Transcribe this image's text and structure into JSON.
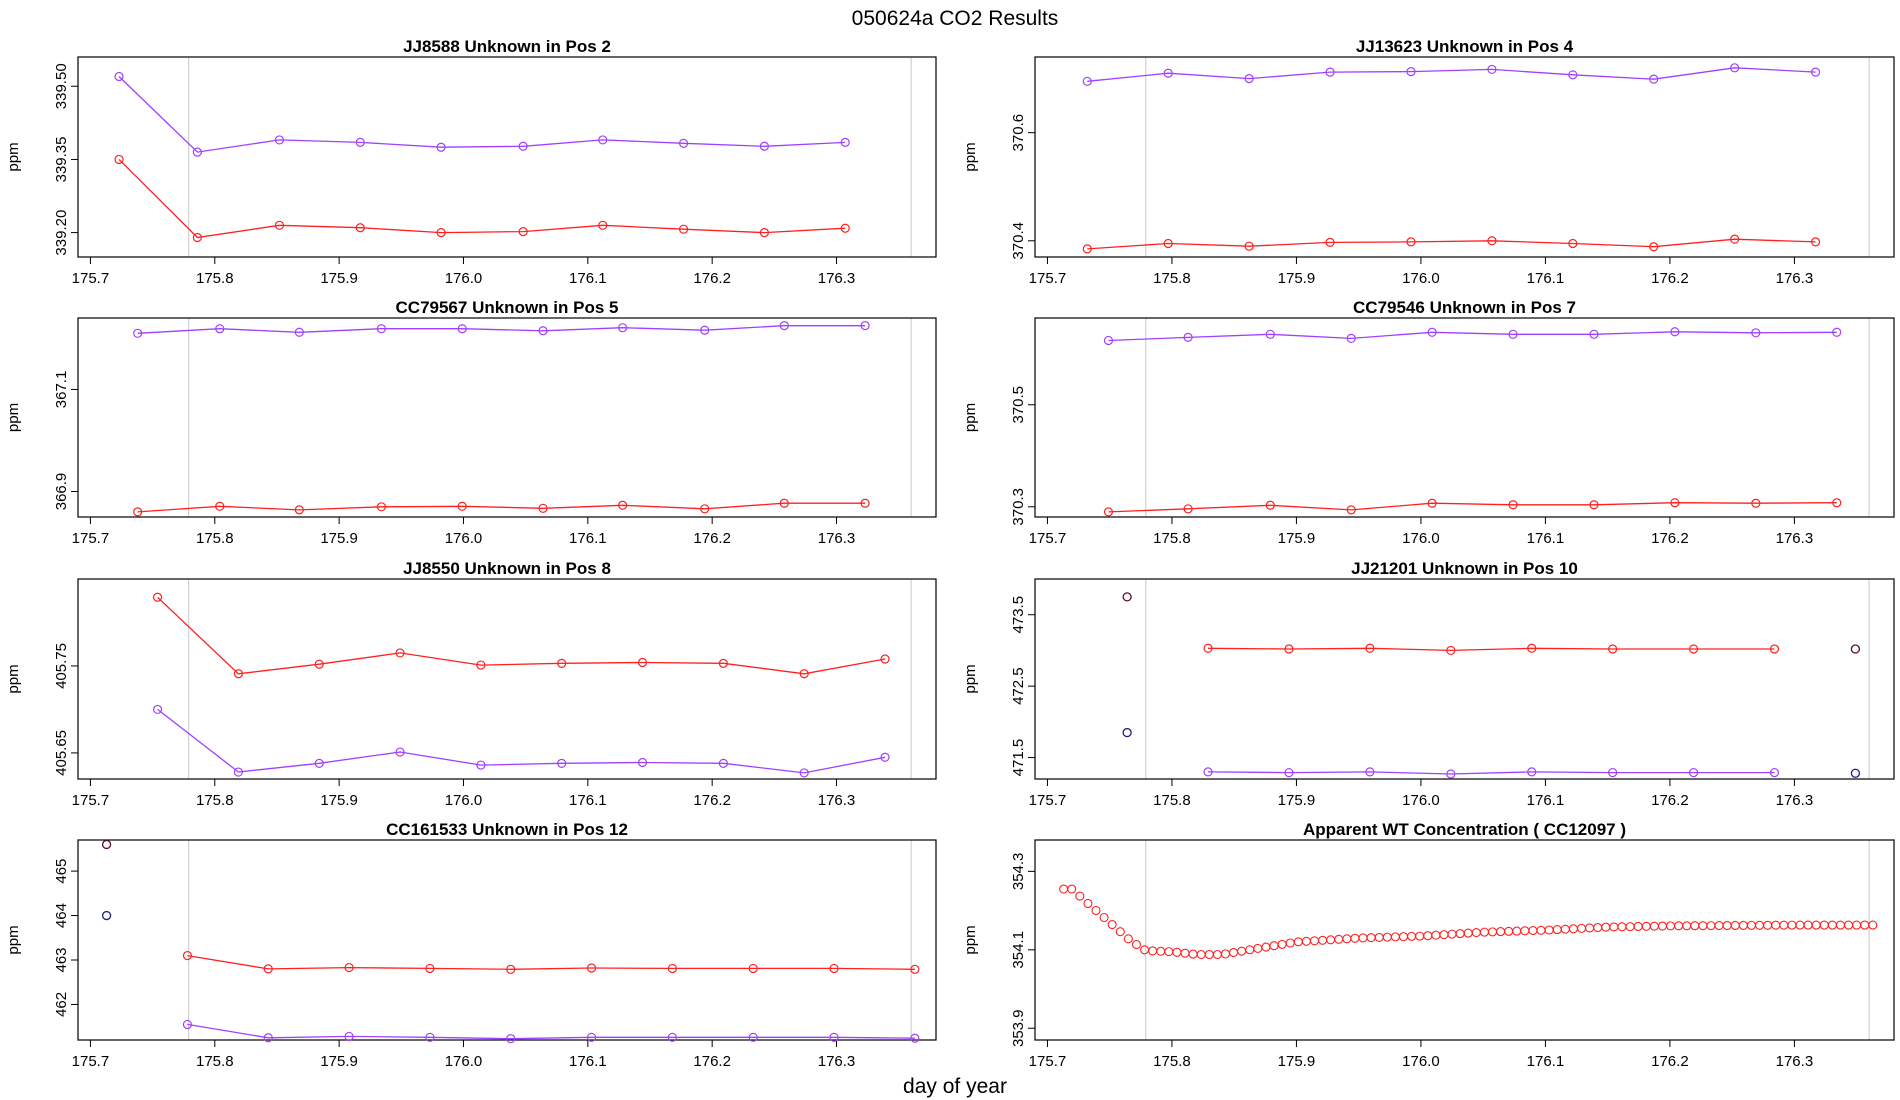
{
  "figure": {
    "title": "050624a  CO2 Results",
    "xlabel": "day of year"
  },
  "colors": {
    "series_a": "#ff2020",
    "series_b": "#a040ff",
    "black_pts": "#1a1a1a",
    "grid_vline": "#c8c8c8",
    "axis": "#000000"
  },
  "chart_data": [
    {
      "type": "line",
      "title": "JJ8588    Unknown in Pos 2",
      "ylabel": "ppm",
      "xlim": [
        175.69,
        176.38
      ],
      "ylim": [
        339.15,
        339.56
      ],
      "xticks": [
        175.7,
        175.8,
        175.9,
        176.0,
        176.1,
        176.2,
        176.3
      ],
      "xtick_labels": [
        "175.7",
        "175.8",
        "175.9",
        "176.0",
        "176.1",
        "176.2",
        "176.3"
      ],
      "yticks": [
        339.2,
        339.35,
        339.5
      ],
      "ytick_labels": [
        "339.20",
        "339.35",
        "339.50"
      ],
      "vlines": [
        175.779,
        176.36
      ],
      "series": [
        {
          "name": "red",
          "color": "#ff2020",
          "x": [
            175.723,
            175.786,
            175.852,
            175.917,
            175.982,
            176.048,
            176.112,
            176.177,
            176.242,
            176.307
          ],
          "y": [
            339.35,
            339.19,
            339.215,
            339.21,
            339.2,
            339.202,
            339.215,
            339.207,
            339.2,
            339.209
          ]
        },
        {
          "name": "purple",
          "color": "#a040ff",
          "x": [
            175.723,
            175.786,
            175.852,
            175.917,
            175.982,
            176.048,
            176.112,
            176.177,
            176.242,
            176.307
          ],
          "y": [
            339.52,
            339.365,
            339.39,
            339.385,
            339.375,
            339.377,
            339.39,
            339.383,
            339.377,
            339.385
          ]
        }
      ],
      "points": []
    },
    {
      "type": "line",
      "title": "JJ13623    Unknown in Pos 4",
      "ylabel": "ppm",
      "xlim": [
        175.69,
        176.38
      ],
      "ylim": [
        370.37,
        370.74
      ],
      "xticks": [
        175.7,
        175.8,
        175.9,
        176.0,
        176.1,
        176.2,
        176.3
      ],
      "xtick_labels": [
        "175.7",
        "175.8",
        "175.9",
        "176.0",
        "176.1",
        "176.2",
        "176.3"
      ],
      "yticks": [
        370.4,
        370.6
      ],
      "ytick_labels": [
        "370.4",
        "370.6"
      ],
      "vlines": [
        175.779,
        176.36
      ],
      "series": [
        {
          "name": "red",
          "color": "#ff2020",
          "x": [
            175.732,
            175.797,
            175.862,
            175.927,
            175.992,
            176.057,
            176.122,
            176.187,
            176.252,
            176.317
          ],
          "y": [
            370.385,
            370.395,
            370.39,
            370.397,
            370.398,
            370.4,
            370.395,
            370.389,
            370.403,
            370.398
          ]
        },
        {
          "name": "purple",
          "color": "#a040ff",
          "x": [
            175.732,
            175.797,
            175.862,
            175.927,
            175.992,
            176.057,
            176.122,
            176.187,
            176.252,
            176.317
          ],
          "y": [
            370.695,
            370.71,
            370.7,
            370.712,
            370.713,
            370.717,
            370.707,
            370.699,
            370.72,
            370.712
          ]
        }
      ],
      "points": []
    },
    {
      "type": "line",
      "title": "CC79567    Unknown in Pos 5",
      "ylabel": "ppm",
      "xlim": [
        175.69,
        176.38
      ],
      "ylim": [
        366.85,
        367.24
      ],
      "xticks": [
        175.7,
        175.8,
        175.9,
        176.0,
        176.1,
        176.2,
        176.3
      ],
      "xtick_labels": [
        "175.7",
        "175.8",
        "175.9",
        "176.0",
        "176.1",
        "176.2",
        "176.3"
      ],
      "yticks": [
        366.9,
        367.1
      ],
      "ytick_labels": [
        "366.9",
        "367.1"
      ],
      "vlines": [
        175.779,
        176.36
      ],
      "series": [
        {
          "name": "red",
          "color": "#ff2020",
          "x": [
            175.738,
            175.804,
            175.868,
            175.934,
            175.999,
            176.064,
            176.128,
            176.194,
            176.258,
            176.323
          ],
          "y": [
            366.86,
            366.871,
            366.864,
            366.87,
            366.871,
            366.867,
            366.873,
            366.866,
            366.877,
            366.877
          ]
        },
        {
          "name": "purple",
          "color": "#a040ff",
          "x": [
            175.738,
            175.804,
            175.868,
            175.934,
            175.999,
            176.064,
            176.128,
            176.194,
            176.258,
            176.323
          ],
          "y": [
            367.21,
            367.219,
            367.212,
            367.219,
            367.219,
            367.215,
            367.221,
            367.216,
            367.225,
            367.225
          ]
        }
      ],
      "points": []
    },
    {
      "type": "line",
      "title": "CC79546    Unknown in Pos 7",
      "ylabel": "ppm",
      "xlim": [
        175.69,
        176.38
      ],
      "ylim": [
        370.28,
        370.67
      ],
      "xticks": [
        175.7,
        175.8,
        175.9,
        176.0,
        176.1,
        176.2,
        176.3
      ],
      "xtick_labels": [
        "175.7",
        "175.8",
        "175.9",
        "176.0",
        "176.1",
        "176.2",
        "176.3"
      ],
      "yticks": [
        370.3,
        370.5
      ],
      "ytick_labels": [
        "370.3",
        "370.5"
      ],
      "vlines": [
        175.779,
        176.36
      ],
      "series": [
        {
          "name": "red",
          "color": "#ff2020",
          "x": [
            175.749,
            175.813,
            175.879,
            175.944,
            176.009,
            176.074,
            176.139,
            176.204,
            176.269,
            176.334
          ],
          "y": [
            370.29,
            370.296,
            370.303,
            370.294,
            370.307,
            370.304,
            370.304,
            370.308,
            370.307,
            370.308
          ]
        },
        {
          "name": "purple",
          "color": "#a040ff",
          "x": [
            175.749,
            175.813,
            175.879,
            175.944,
            176.009,
            176.074,
            176.139,
            176.204,
            176.269,
            176.334
          ],
          "y": [
            370.626,
            370.632,
            370.638,
            370.63,
            370.642,
            370.638,
            370.638,
            370.643,
            370.641,
            370.642
          ]
        }
      ],
      "points": []
    },
    {
      "type": "line",
      "title": "JJ8550    Unknown in Pos 8",
      "ylabel": "ppm",
      "xlim": [
        175.69,
        176.38
      ],
      "ylim": [
        405.62,
        405.85
      ],
      "xticks": [
        175.7,
        175.8,
        175.9,
        176.0,
        176.1,
        176.2,
        176.3
      ],
      "xtick_labels": [
        "175.7",
        "175.8",
        "175.9",
        "176.0",
        "176.1",
        "176.2",
        "176.3"
      ],
      "yticks": [
        405.65,
        405.75
      ],
      "ytick_labels": [
        "405.65",
        "405.75"
      ],
      "vlines": [
        175.779,
        176.36
      ],
      "series": [
        {
          "name": "red",
          "color": "#ff2020",
          "x": [
            175.754,
            175.819,
            175.884,
            175.949,
            176.014,
            176.079,
            176.144,
            176.209,
            176.274,
            176.339
          ],
          "y": [
            405.829,
            405.741,
            405.752,
            405.765,
            405.751,
            405.753,
            405.754,
            405.753,
            405.741,
            405.758
          ]
        },
        {
          "name": "purple",
          "color": "#a040ff",
          "x": [
            175.754,
            175.819,
            175.884,
            175.949,
            176.014,
            176.079,
            176.144,
            176.209,
            176.274,
            176.339
          ],
          "y": [
            405.7,
            405.628,
            405.638,
            405.651,
            405.636,
            405.638,
            405.639,
            405.638,
            405.627,
            405.645
          ]
        }
      ],
      "points": []
    },
    {
      "type": "line",
      "title": "JJ21201    Unknown in Pos 10",
      "ylabel": "ppm",
      "xlim": [
        175.69,
        176.38
      ],
      "ylim": [
        471.2,
        474.0
      ],
      "xticks": [
        175.7,
        175.8,
        175.9,
        176.0,
        176.1,
        176.2,
        176.3
      ],
      "xtick_labels": [
        "175.7",
        "175.8",
        "175.9",
        "176.0",
        "176.1",
        "176.2",
        "176.3"
      ],
      "yticks": [
        471.5,
        472.5,
        473.5
      ],
      "ytick_labels": [
        "471.5",
        "472.5",
        "473.5"
      ],
      "vlines": [
        175.779,
        176.36
      ],
      "series": [
        {
          "name": "red",
          "color": "#ff2020",
          "x": [
            175.829,
            175.894,
            175.959,
            176.024,
            176.089,
            176.154,
            176.219,
            176.284
          ],
          "y": [
            473.03,
            473.02,
            473.03,
            473.0,
            473.03,
            473.02,
            473.02,
            473.02
          ]
        },
        {
          "name": "purple",
          "color": "#a040ff",
          "x": [
            175.829,
            175.894,
            175.959,
            176.024,
            176.089,
            176.154,
            176.219,
            176.284
          ],
          "y": [
            471.3,
            471.29,
            471.3,
            471.27,
            471.3,
            471.29,
            471.29,
            471.29
          ]
        }
      ],
      "points": [
        {
          "x": 175.764,
          "y": 473.75,
          "color": "#5a1020"
        },
        {
          "x": 175.764,
          "y": 471.85,
          "color": "#20207a"
        },
        {
          "x": 176.349,
          "y": 473.02,
          "color": "#5a1020"
        },
        {
          "x": 176.349,
          "y": 471.28,
          "color": "#20207a"
        }
      ]
    },
    {
      "type": "line",
      "title": "CC161533    Unknown in Pos 12",
      "ylabel": "ppm",
      "xlim": [
        175.69,
        176.38
      ],
      "ylim": [
        461.2,
        465.7
      ],
      "xticks": [
        175.7,
        175.8,
        175.9,
        176.0,
        176.1,
        176.2,
        176.3
      ],
      "xtick_labels": [
        "175.7",
        "175.8",
        "175.9",
        "176.0",
        "176.1",
        "176.2",
        "176.3"
      ],
      "yticks": [
        462,
        463,
        464,
        465
      ],
      "ytick_labels": [
        "462",
        "463",
        "464",
        "465"
      ],
      "vlines": [
        175.779,
        176.36
      ],
      "series": [
        {
          "name": "red",
          "color": "#ff2020",
          "x": [
            175.778,
            175.843,
            175.908,
            175.973,
            176.038,
            176.103,
            176.168,
            176.233,
            176.298,
            176.363
          ],
          "y": [
            463.1,
            462.8,
            462.83,
            462.81,
            462.79,
            462.82,
            462.81,
            462.81,
            462.81,
            462.79
          ]
        },
        {
          "name": "purple",
          "color": "#a040ff",
          "x": [
            175.778,
            175.843,
            175.908,
            175.973,
            176.038,
            176.103,
            176.168,
            176.233,
            176.298,
            176.363
          ],
          "y": [
            461.55,
            461.25,
            461.28,
            461.26,
            461.23,
            461.26,
            461.26,
            461.26,
            461.26,
            461.24
          ]
        }
      ],
      "points": [
        {
          "x": 175.713,
          "y": 465.6,
          "color": "#5a1020"
        },
        {
          "x": 175.713,
          "y": 464.0,
          "color": "#20207a"
        }
      ]
    },
    {
      "type": "scatter",
      "title": "Apparent WT Concentration ( CC12097 )",
      "ylabel": "ppm",
      "xlim": [
        175.69,
        176.38
      ],
      "ylim": [
        353.87,
        354.38
      ],
      "xticks": [
        175.7,
        175.8,
        175.9,
        176.0,
        176.1,
        176.2,
        176.3
      ],
      "xtick_labels": [
        "175.7",
        "175.8",
        "175.9",
        "176.0",
        "176.1",
        "176.2",
        "176.3"
      ],
      "yticks": [
        353.9,
        354.1,
        354.3
      ],
      "ytick_labels": [
        "353.9",
        "354.1",
        "354.3"
      ],
      "vlines": [
        175.779,
        176.36
      ],
      "wt_curve": {
        "color": "#ff2020",
        "x_start": 175.713,
        "x_end": 176.363,
        "n": 101,
        "keypoints": [
          [
            175.713,
            354.255
          ],
          [
            175.72,
            354.255
          ],
          [
            175.73,
            354.225
          ],
          [
            175.75,
            354.17
          ],
          [
            175.765,
            354.128
          ],
          [
            175.773,
            354.11
          ],
          [
            175.779,
            354.098
          ],
          [
            175.8,
            354.095
          ],
          [
            175.82,
            354.088
          ],
          [
            175.84,
            354.088
          ],
          [
            175.9,
            354.12
          ],
          [
            175.95,
            354.13
          ],
          [
            176.0,
            354.135
          ],
          [
            176.05,
            354.145
          ],
          [
            176.1,
            354.15
          ],
          [
            176.15,
            354.158
          ],
          [
            176.2,
            354.161
          ],
          [
            176.3,
            354.163
          ],
          [
            176.363,
            354.163
          ]
        ]
      },
      "series": [],
      "points": []
    }
  ]
}
